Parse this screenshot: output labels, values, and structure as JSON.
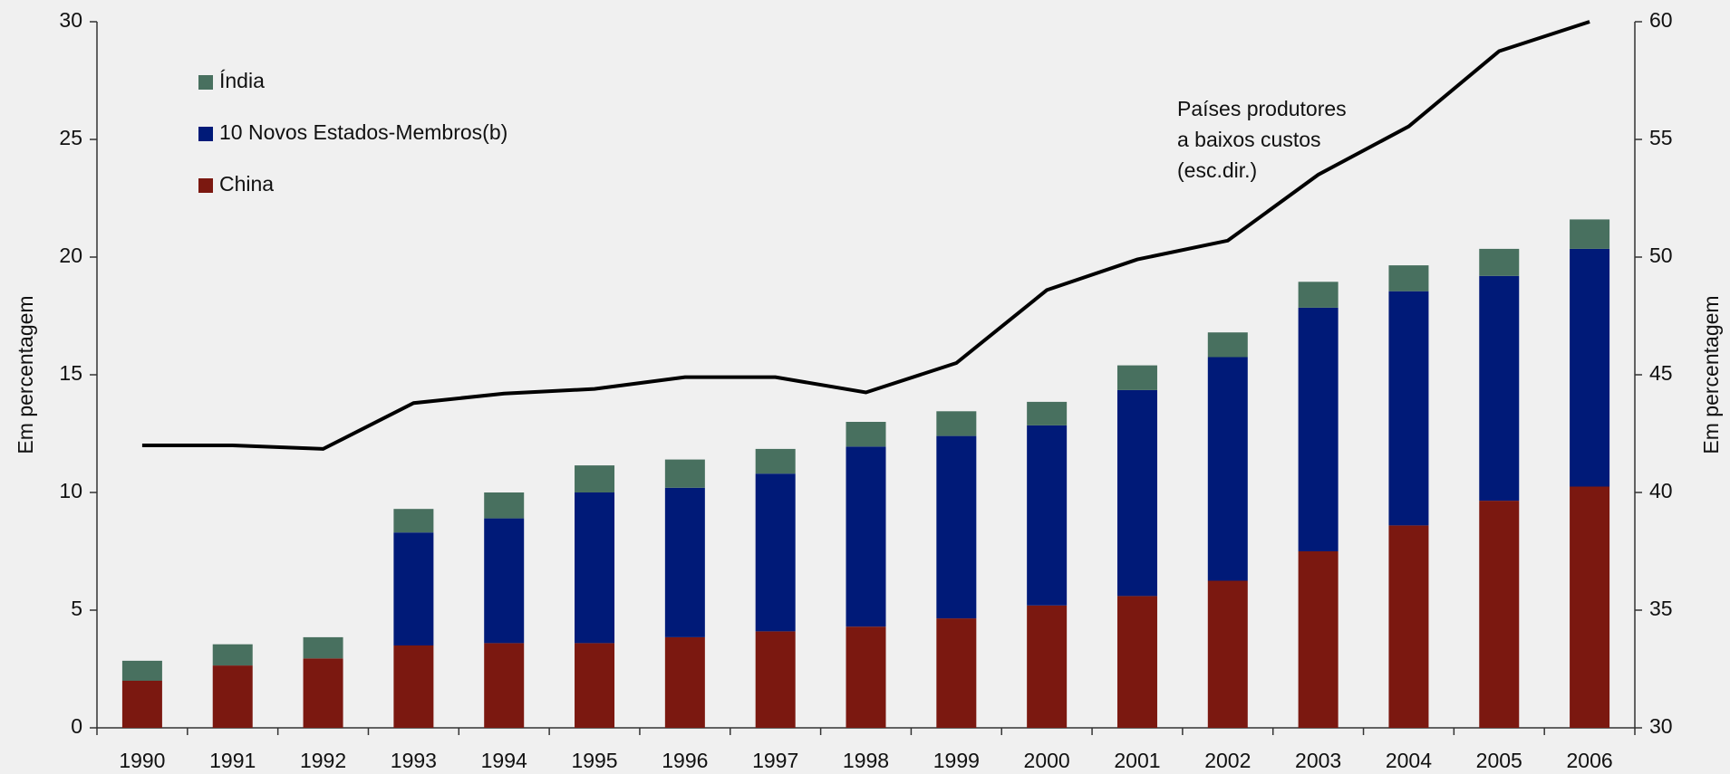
{
  "chart_data": {
    "type": "bar",
    "categories": [
      "1990",
      "1991",
      "1992",
      "1993",
      "1994",
      "1995",
      "1996",
      "1997",
      "1998",
      "1999",
      "2000",
      "2001",
      "2002",
      "2003",
      "2004",
      "2005",
      "2006"
    ],
    "stacked": true,
    "series": [
      {
        "name": "China",
        "color": "#7b1810",
        "values": [
          2.0,
          2.65,
          2.95,
          3.5,
          3.6,
          3.6,
          3.85,
          4.1,
          4.3,
          4.65,
          5.2,
          5.6,
          6.25,
          7.5,
          8.6,
          9.65,
          10.25
        ]
      },
      {
        "name": "10 Novos Estados-Membros(b)",
        "color": "#001a78",
        "values": [
          0,
          0,
          0,
          4.8,
          5.3,
          6.4,
          6.35,
          6.7,
          7.65,
          7.75,
          7.65,
          8.75,
          9.5,
          10.35,
          9.95,
          9.55,
          10.1
        ]
      },
      {
        "name": "Índia",
        "color": "#48705f",
        "values": [
          0.85,
          0.9,
          0.9,
          1.0,
          1.1,
          1.15,
          1.2,
          1.05,
          1.05,
          1.05,
          1.0,
          1.05,
          1.05,
          1.1,
          1.1,
          1.15,
          1.25
        ]
      },
      {
        "type": "line",
        "axis": "y2",
        "color": "#000000",
        "values": [
          42.0,
          42.0,
          41.85,
          43.8,
          44.2,
          44.4,
          44.9,
          44.9,
          44.25,
          45.5,
          48.6,
          49.9,
          50.7,
          53.5,
          55.55,
          58.75,
          60.0
        ]
      }
    ],
    "annotation": [
      "Países produtores",
      "a baixos custos",
      "(esc.dir.)"
    ],
    "ylabel": "Em percentagem",
    "y2label": "Em percentagem",
    "ylim": [
      0,
      30
    ],
    "yticks": [
      0,
      5,
      10,
      15,
      20,
      25,
      30
    ],
    "y2lim": [
      30,
      60
    ],
    "y2ticks": [
      30,
      35,
      40,
      45,
      50,
      55,
      60
    ],
    "legend": "upper left"
  }
}
